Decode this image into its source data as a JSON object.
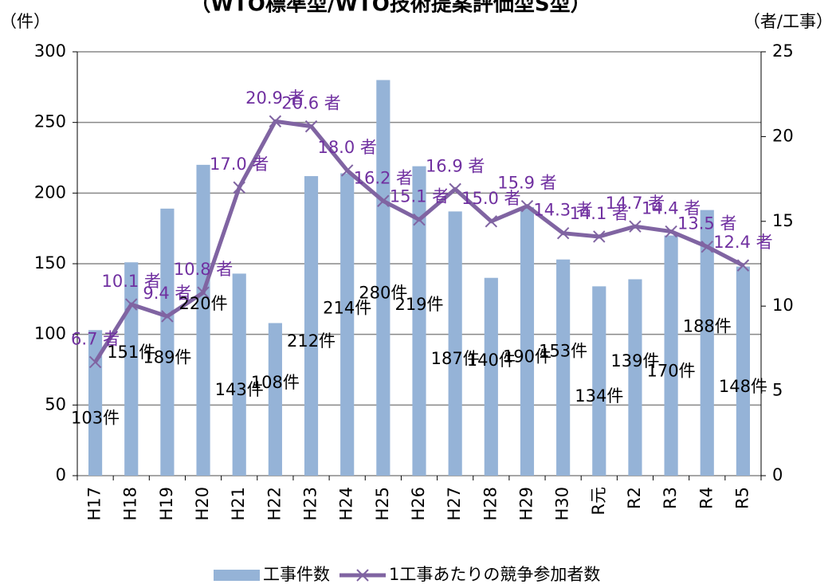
{
  "chart_data": {
    "type": "bar",
    "title": "（WTO標準型/WTO技術提案評価型S型）",
    "y_label": "（件）",
    "y2_label": "（者/工事）",
    "categories": [
      "H17",
      "H18",
      "H19",
      "H20",
      "H21",
      "H22",
      "H23",
      "H24",
      "H25",
      "H26",
      "H27",
      "H28",
      "H29",
      "H30",
      "R元",
      "R2",
      "R3",
      "R4",
      "R5"
    ],
    "series": [
      {
        "name": "工事件数",
        "type": "bar",
        "color": "#95b3d7",
        "values": [
          103,
          151,
          189,
          220,
          143,
          108,
          212,
          214,
          280,
          219,
          187,
          140,
          190,
          153,
          134,
          139,
          170,
          188,
          148
        ],
        "value_labels": [
          "103件",
          "151件",
          "189件",
          "220件",
          "143件",
          "108件",
          "212件",
          "214件",
          "280件",
          "219件",
          "187件",
          "140件",
          "190件",
          "153件",
          "134件",
          "139件",
          "170件",
          "188件",
          "148件"
        ]
      },
      {
        "name": "1工事あたりの競争参加者数",
        "type": "line",
        "axis": "y2",
        "color": "#8064a2",
        "values": [
          6.7,
          10.1,
          9.4,
          10.8,
          17.0,
          20.9,
          20.6,
          18.0,
          16.2,
          15.1,
          16.9,
          15.0,
          15.9,
          14.3,
          14.1,
          14.7,
          14.4,
          13.5,
          12.4
        ],
        "value_labels": [
          "6.7 者",
          "10.1 者",
          "9.4 者",
          "10.8 者",
          "17.0 者",
          "20.9 者",
          "20.6 者",
          "18.0 者",
          "16.2 者",
          "15.1 者",
          "16.9 者",
          "15.0 者",
          "15.9 者",
          "14.3 者",
          "14.1 者",
          "14.7 者",
          "14.4 者",
          "13.5 者",
          "12.4 者"
        ]
      }
    ],
    "ylim": [
      0,
      300
    ],
    "yticks": [
      0,
      50,
      100,
      150,
      200,
      250,
      300
    ],
    "y2lim": [
      0,
      25
    ],
    "y2ticks": [
      0,
      5,
      10,
      15,
      20,
      25
    ],
    "grid": true,
    "legend": "bottom"
  }
}
